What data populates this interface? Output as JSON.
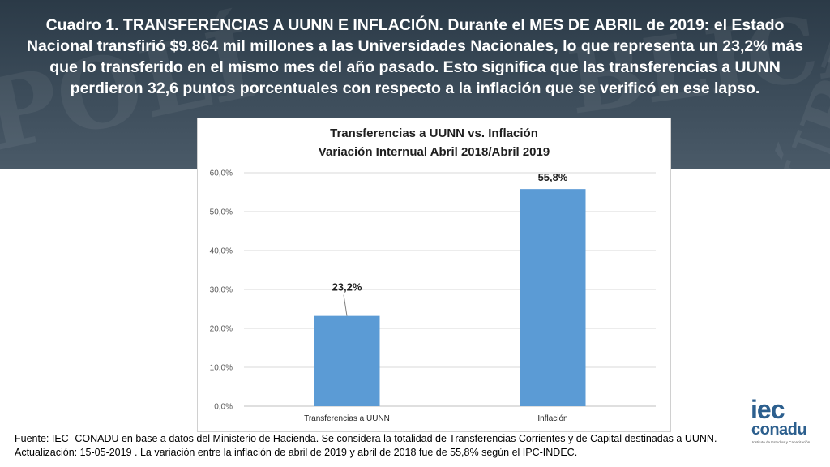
{
  "headline": "Cuadro 1. TRANSFERENCIAS A UUNN E INFLACIÓN. Durante el MES DE ABRIL de 2019: el Estado Nacional transfirió $9.864 mil millones a las Universidades Nacionales, lo que representa un 23,2% más que lo transferido en el mismo mes del año pasado. Esto significa que las transferencias a UUNN perdieron 32,6 puntos porcentuales con respecto a la inflación que se verificó en ese lapso.",
  "chart_data": {
    "type": "bar",
    "title": "Transferencias a UUNN vs. Inflación",
    "subtitle": "Variación Internual Abril 2018/Abril 2019",
    "categories": [
      "Transferencias a UUNN",
      "Inflación"
    ],
    "values": [
      23.2,
      55.8
    ],
    "data_labels": [
      "23,2%",
      "55,8%"
    ],
    "ylim": [
      0,
      60
    ],
    "yticks": [
      0,
      10,
      20,
      30,
      40,
      50,
      60
    ],
    "ytick_labels": [
      "0,0%",
      "10,0%",
      "20,0%",
      "30,0%",
      "40,0%",
      "50,0%",
      "60,0%"
    ],
    "grid": true,
    "bar_color": "#5b9bd5",
    "xlabel": "",
    "ylabel": ""
  },
  "source": "Fuente: IEC- CONADU en base a datos del Ministerio de Hacienda. Se considera la totalidad de Transferencias Corrientes y de Capital destinadas a UUNN. Actualización: 15-05-2019 . La variación entre la inflación de abril de 2019 y abril de 2018 fue de 55,8% según el IPC-INDEC.",
  "logo": {
    "line1": "iec",
    "line2": "conadu",
    "tagline": "Instituto de Estudios y Capacitación"
  },
  "colors": {
    "banner": "#3c4c5a",
    "accent": "#2c5f8e"
  }
}
